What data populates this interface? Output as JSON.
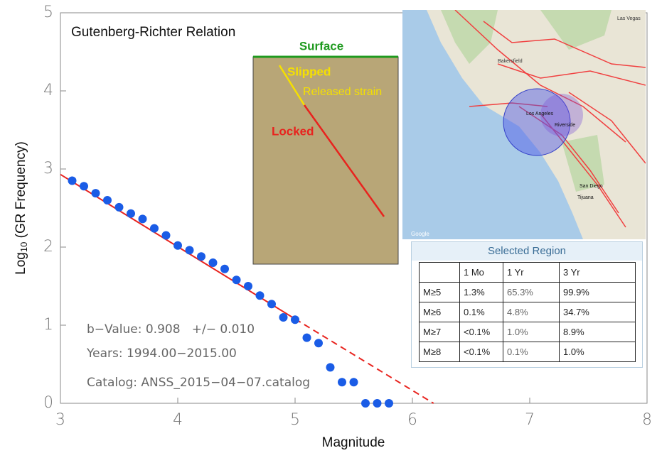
{
  "chart_data": {
    "type": "scatter",
    "title": "Gutenberg-Richter Relation",
    "x_label": "Magnitude",
    "y_label": {
      "text": "Log",
      "subscript": "10",
      "rest": " (GR Frequency)"
    },
    "x": [
      3.1,
      3.2,
      3.3,
      3.4,
      3.5,
      3.6,
      3.7,
      3.8,
      3.9,
      4.0,
      4.1,
      4.2,
      4.3,
      4.4,
      4.5,
      4.6,
      4.7,
      4.8,
      4.9,
      5.0,
      5.1,
      5.2,
      5.3,
      5.4,
      5.5,
      5.6,
      5.7,
      5.8
    ],
    "values": [
      2.85,
      2.78,
      2.69,
      2.6,
      2.51,
      2.43,
      2.36,
      2.24,
      2.15,
      2.02,
      1.96,
      1.88,
      1.8,
      1.72,
      1.58,
      1.5,
      1.38,
      1.27,
      1.1,
      1.07,
      0.84,
      0.77,
      0.46,
      0.27,
      0.27,
      0.0,
      0.0,
      0.0
    ],
    "color": "#1a5ce6",
    "fit": {
      "color": "#e8231e",
      "x": [
        3.0,
        5.0
      ],
      "values": [
        2.93,
        1.08
      ],
      "extrapolation": {
        "x": [
          5.0,
          6.18
        ],
        "values": [
          1.08,
          0.0
        ]
      }
    },
    "xlim": [
      3,
      8
    ],
    "ylim": [
      0,
      5
    ],
    "xticks": [
      3,
      4,
      5,
      6,
      7,
      8
    ],
    "yticks": [
      0,
      1,
      2,
      3,
      4,
      5
    ],
    "annotations": {
      "b_value": "b−Value: 0.908   +/− 0.010",
      "years": "Years: 1994.00−2015.00",
      "catalog": "Catalog: ANSS_2015−04−07.catalog"
    }
  },
  "diagram": {
    "surface": "Surface",
    "slipped": "Slipped",
    "released": "Released strain",
    "locked": "Locked"
  },
  "map": {
    "labels": [
      "Bakersfield",
      "Las Vegas",
      "Los Angeles",
      "Riverside",
      "San Diego",
      "Tijuana",
      "Google"
    ]
  },
  "table": {
    "title": "Selected Region",
    "header": [
      "1 Mo",
      "1 Yr",
      "3 Yr"
    ],
    "rows": [
      [
        "M≥5",
        "1.3%",
        "65.3%",
        "99.9%"
      ],
      [
        "M≥6",
        "0.1%",
        "4.8%",
        "34.7%"
      ],
      [
        "M≥7",
        "<0.1%",
        "1.0%",
        "8.9%"
      ],
      [
        "M≥8",
        "<0.1%",
        "0.1%",
        "1.0%"
      ]
    ]
  }
}
